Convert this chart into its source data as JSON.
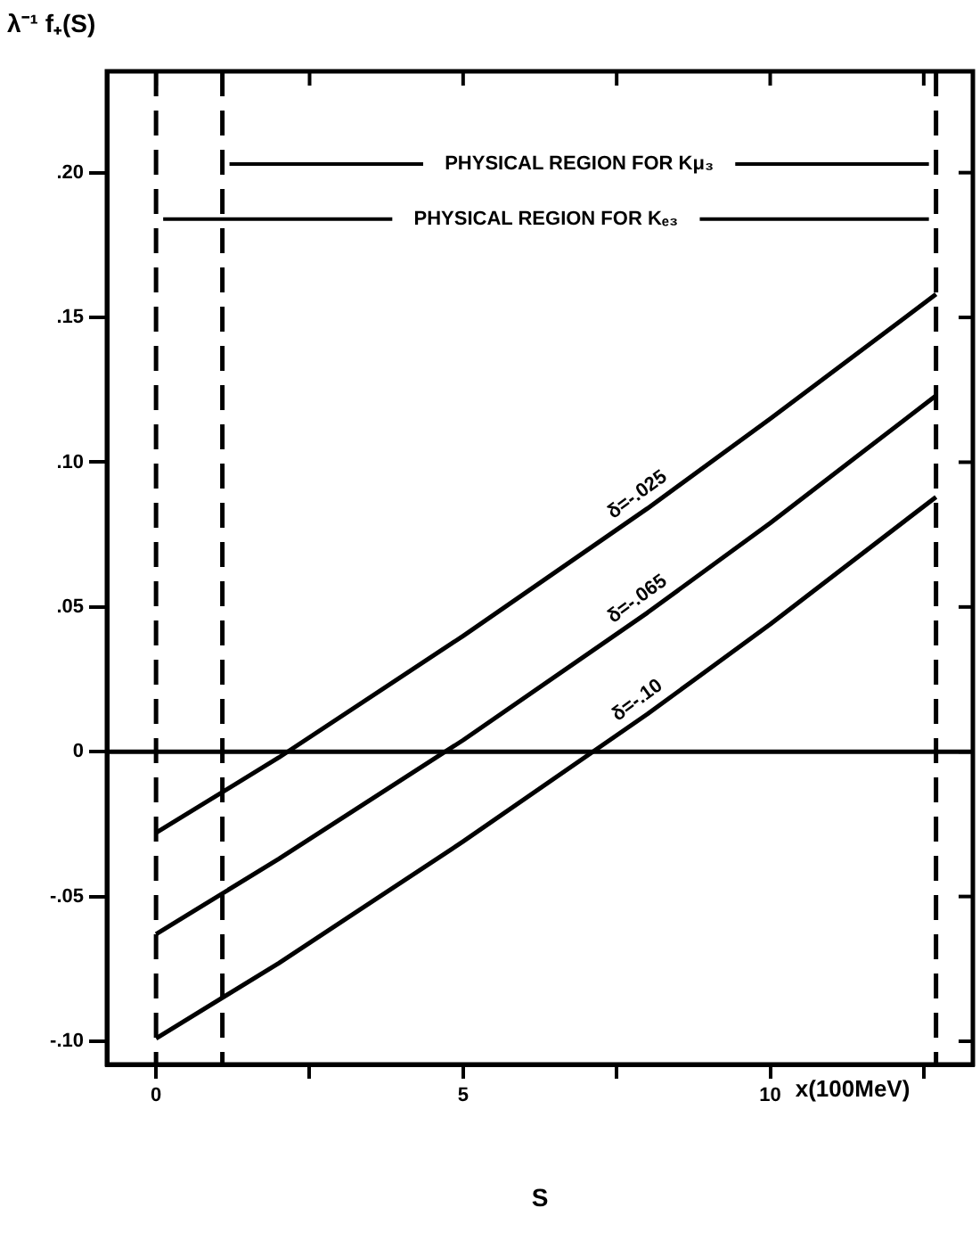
{
  "chart_data": {
    "type": "line",
    "ylabel": "λ⁻¹ f₊(S)",
    "xlabel": "S",
    "xlim": [
      -0.8,
      13.3
    ],
    "ylim": [
      -0.108,
      0.235
    ],
    "xticks": [
      0,
      {
        "value": 2.5,
        "label": null
      },
      5,
      {
        "value": 7.5,
        "label": null
      },
      10,
      {
        "value": 12.5,
        "label": null
      }
    ],
    "yticks": [
      {
        "value": -0.1,
        "label": "-.10"
      },
      {
        "value": -0.05,
        "label": "-.05"
      },
      0,
      {
        "value": 0.05,
        "label": ".05"
      },
      {
        "value": 0.1,
        "label": ".10"
      },
      {
        "value": 0.15,
        "label": ".15"
      },
      {
        "value": 0.2,
        "label": ".20"
      }
    ],
    "x": [
      0,
      2,
      5,
      8,
      10,
      12.7
    ],
    "series": [
      {
        "name": "δ=-.025",
        "color": "#000000",
        "values": [
          -0.028,
          -0.002,
          0.04,
          0.084,
          0.115,
          0.158
        ]
      },
      {
        "name": "δ=-.065",
        "color": "#000000",
        "values": [
          -0.063,
          -0.037,
          0.004,
          0.048,
          0.079,
          0.123
        ]
      },
      {
        "name": "δ=-.10",
        "color": "#000000",
        "values": [
          -0.099,
          -0.073,
          -0.031,
          0.013,
          0.044,
          0.088
        ]
      }
    ],
    "ref_lines": [
      {
        "axis": "x",
        "value": 0,
        "line_style": "dashed",
        "color": "#000000"
      },
      {
        "axis": "x",
        "value": 1.08,
        "line_style": "dashed",
        "color": "#000000"
      },
      {
        "axis": "x",
        "value": 12.7,
        "line_style": "dashed",
        "color": "#000000"
      },
      {
        "axis": "y",
        "value": 0,
        "line_style": "solid",
        "color": "#000000"
      }
    ],
    "annotations": [
      "x(100MeV)",
      {
        "text": "PHYSICAL REGION FOR Kμ₃",
        "x": 1.08,
        "y": 0.203
      },
      {
        "text": "PHYSICAL REGION FOR Kₑ₃",
        "x": 0,
        "y": 0.184
      }
    ],
    "grid": false,
    "legend": false,
    "marker": "none",
    "line_style": "solid"
  }
}
